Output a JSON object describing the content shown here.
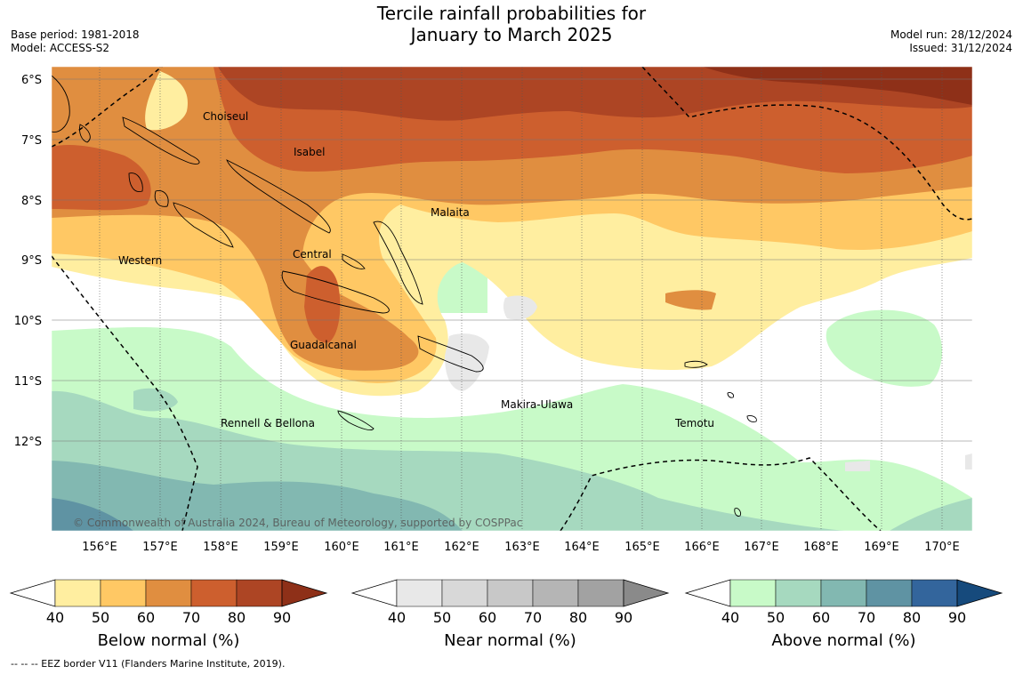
{
  "header": {
    "title_line1": "Tercile rainfall probabilities for",
    "title_line2": "January to March 2025",
    "base_period": "Base period: 1981-2018",
    "model": "Model: ACCESS-S2",
    "model_run": "Model run: 28/12/2024",
    "issued": "Issued: 31/12/2024"
  },
  "map": {
    "lat_labels": [
      "6°S",
      "7°S",
      "8°S",
      "9°S",
      "10°S",
      "11°S",
      "12°S"
    ],
    "lon_labels": [
      "156°E",
      "157°E",
      "158°E",
      "159°E",
      "160°E",
      "161°E",
      "162°E",
      "163°E",
      "164°E",
      "165°E",
      "166°E",
      "167°E",
      "168°E",
      "169°E",
      "170°E"
    ],
    "provinces": [
      "Choiseul",
      "Isabel",
      "Malaita",
      "Western",
      "Central",
      "Guadalcanal",
      "Makira-Ulawa",
      "Rennell & Bellona",
      "Temotu"
    ],
    "copyright": "© Commonwealth of Australia 2024, Bureau of Meteorology, supported by COSPPac"
  },
  "colorbars": [
    {
      "label": "Below normal (%)",
      "ticks": [
        "40",
        "50",
        "60",
        "70",
        "80",
        "90"
      ],
      "colors": [
        "#ffeea0",
        "#ffc864",
        "#e08e40",
        "#cd5f2e",
        "#ad4524",
        "#8e3018"
      ]
    },
    {
      "label": "Near normal (%)",
      "ticks": [
        "40",
        "50",
        "60",
        "70",
        "80",
        "90"
      ],
      "colors": [
        "#e8e8e8",
        "#d8d8d8",
        "#c8c8c8",
        "#b5b5b5",
        "#a2a2a2",
        "#8a8a8a"
      ]
    },
    {
      "label": "Above normal (%)",
      "ticks": [
        "40",
        "50",
        "60",
        "70",
        "80",
        "90"
      ],
      "colors": [
        "#c8fac8",
        "#a6d9bf",
        "#82b8b1",
        "#5f93a3",
        "#33659c",
        "#164a7c"
      ]
    }
  ],
  "footer": "--  --  -- EEZ border V11 (Flanders Marine Institute, 2019)."
}
